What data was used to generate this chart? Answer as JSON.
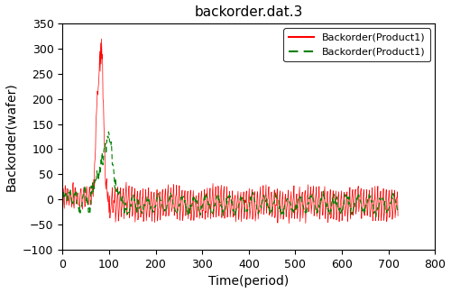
{
  "title": "backorder.dat.3",
  "xlabel": "Time(period)",
  "ylabel": "Backorder(wafer)",
  "xlim": [
    0,
    800
  ],
  "ylim": [
    -100,
    350
  ],
  "xticks": [
    0,
    100,
    200,
    300,
    400,
    500,
    600,
    700,
    800
  ],
  "yticks": [
    -100,
    -50,
    0,
    50,
    100,
    150,
    200,
    250,
    300,
    350
  ],
  "legend1_label": "Backorder(Product1)",
  "legend2_label": "Backorder(Product1)",
  "line1_color": "red",
  "line2_color": "green",
  "background_color": "#ffffff",
  "n_points": 720,
  "red_osc_period": 6,
  "red_osc_amp_base": 35,
  "green_osc_period": 10,
  "green_osc_amp_base": 15
}
